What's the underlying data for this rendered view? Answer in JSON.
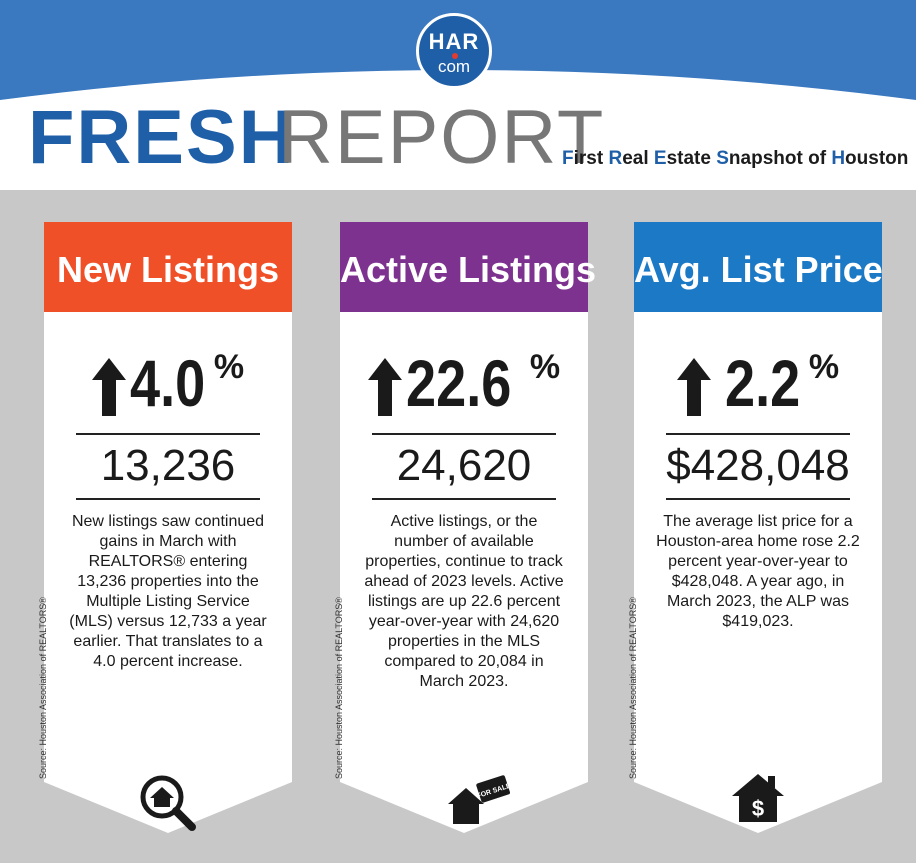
{
  "header": {
    "logo_line1": "HAR",
    "logo_line2": "com",
    "title_fresh": "FRESH",
    "title_report": "REPORT",
    "tagline_parts": [
      "F",
      "irst ",
      "R",
      "eal ",
      "E",
      "state ",
      "S",
      "napshot of ",
      "H",
      "ouston"
    ]
  },
  "source_text": "Source: Houston Association of REALTORS®",
  "colors": {
    "brand_blue": "#1f5fa8",
    "header_band": "#3a78c0",
    "new_listings": "#f05028",
    "active_listings": "#7e3290",
    "avg_price": "#1c79c6"
  },
  "cards": [
    {
      "title": "New Listings",
      "trend": "up",
      "change_value": "4.0",
      "change_unit": "%",
      "big_value": "13,236",
      "body": "New listings saw continued gains in March with REALTORS® entering 13,236 properties into the Multiple Listing Service (MLS) versus 12,733 a year earlier. That translates to a 4.0 percent increase.",
      "icon": "magnifier-house-icon"
    },
    {
      "title": "Active Listings",
      "trend": "up",
      "change_value": "22.6",
      "change_unit": "%",
      "big_value": "24,620",
      "body": "Active listings, or the number of available properties, continue to track ahead of 2023 levels. Active listings are up 22.6 percent year-over-year with 24,620 properties in the MLS compared to 20,084 in March 2023.",
      "icon": "house-for-sale-icon",
      "icon_label": "FOR SALE"
    },
    {
      "title": "Avg. List Price",
      "trend": "up",
      "change_value": "2.2",
      "change_unit": "%",
      "big_value": "$428,048",
      "body": "The average list price for a Houston-area home rose 2.2 percent year-over-year to $428,048. A year ago, in March 2023, the ALP was $419,023.",
      "icon": "house-dollar-icon",
      "icon_label": "$"
    }
  ]
}
